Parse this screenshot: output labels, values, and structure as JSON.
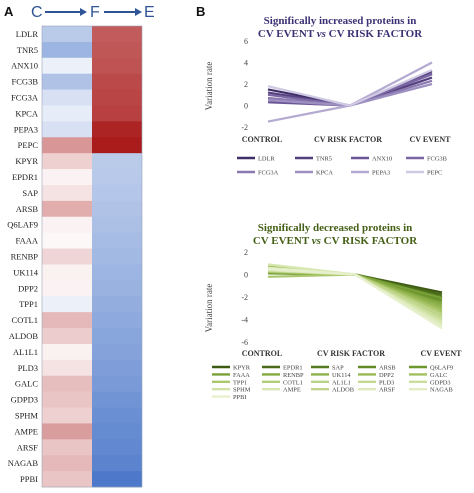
{
  "panel_labels": {
    "a": "A",
    "b": "B"
  },
  "heatmap_header": {
    "c": "C",
    "f": "F",
    "e": "E"
  },
  "chart_data": [
    {
      "type": "heatmap",
      "columns": [
        "C→F",
        "F→E"
      ],
      "rows": [
        "LDLR",
        "TNR5",
        "ANX10",
        "FCG3B",
        "FCG3A",
        "KPCA",
        "PEPA3",
        "PEPC",
        "KPYR",
        "EPDR1",
        "SAP",
        "ARSB",
        "Q6LAF9",
        "FAAA",
        "RENBP",
        "UK114",
        "DPP2",
        "TPP1",
        "COTL1",
        "ALDOB",
        "AL1L1",
        "PLD3",
        "GALC",
        "GDPD3",
        "SPHM",
        "AMPE",
        "ARSF",
        "NAGAB",
        "PPBI"
      ],
      "values": [
        [
          -0.35,
          0.7
        ],
        [
          -0.5,
          0.72
        ],
        [
          -0.1,
          0.74
        ],
        [
          -0.4,
          0.78
        ],
        [
          -0.2,
          0.8
        ],
        [
          -0.12,
          0.82
        ],
        [
          -0.2,
          0.94
        ],
        [
          0.45,
          0.98
        ],
        [
          0.2,
          -0.35
        ],
        [
          0.05,
          -0.36
        ],
        [
          0.12,
          -0.38
        ],
        [
          0.35,
          -0.4
        ],
        [
          0.05,
          -0.42
        ],
        [
          0.03,
          -0.45
        ],
        [
          0.18,
          -0.47
        ],
        [
          0.06,
          -0.5
        ],
        [
          0.05,
          -0.52
        ],
        [
          -0.1,
          -0.55
        ],
        [
          0.3,
          -0.58
        ],
        [
          0.22,
          -0.6
        ],
        [
          0.06,
          -0.62
        ],
        [
          0.12,
          -0.65
        ],
        [
          0.28,
          -0.68
        ],
        [
          0.25,
          -0.72
        ],
        [
          0.2,
          -0.75
        ],
        [
          0.42,
          -0.78
        ],
        [
          0.25,
          -0.8
        ],
        [
          0.3,
          -0.83
        ],
        [
          0.25,
          -0.9
        ]
      ]
    },
    {
      "type": "line",
      "title_parts": [
        "Significally increased proteins in",
        "CV EVENT ",
        "vs",
        " CV RISK FACTOR"
      ],
      "ylabel": "Variation rate",
      "categories": [
        "CONTROL",
        "CV RISK FACTOR",
        "CV EVENT"
      ],
      "ylim": [
        -2,
        6
      ],
      "yticks": [
        -2,
        0,
        2,
        4,
        6
      ],
      "legend_placement": "bottom",
      "series": [
        {
          "name": "LDLR",
          "color": "#3f2e67",
          "values": [
            1.5,
            0,
            3.2
          ]
        },
        {
          "name": "TNR5",
          "color": "#54407f",
          "values": [
            1.2,
            0,
            2.6
          ]
        },
        {
          "name": "ANX10",
          "color": "#6a5696",
          "values": [
            0.3,
            0,
            3.0
          ]
        },
        {
          "name": "FCG3B",
          "color": "#7a66a3",
          "values": [
            1.0,
            0,
            2.9
          ]
        },
        {
          "name": "FCG3A",
          "color": "#8a78b0",
          "values": [
            0.7,
            0,
            2.3
          ]
        },
        {
          "name": "KPCA",
          "color": "#9d8fc0",
          "values": [
            0.5,
            0,
            2.0
          ]
        },
        {
          "name": "PEPA3",
          "color": "#b3a9d1",
          "values": [
            -1.5,
            0,
            4.0
          ]
        },
        {
          "name": "PEPC",
          "color": "#cfc9e3",
          "values": [
            1.8,
            0,
            3.3
          ]
        }
      ]
    },
    {
      "type": "line",
      "title_parts": [
        "Significally decreased proteins in",
        "CV EVENT ",
        "vs",
        " CV RISK FACTOR"
      ],
      "ylabel": "Variation rate",
      "categories": [
        "CONTROL",
        "CV RISK FACTOR",
        "CV EVENT"
      ],
      "ylim": [
        -6,
        2
      ],
      "yticks": [
        -6,
        -4,
        -2,
        0,
        2
      ],
      "legend_placement": "bottom",
      "series": [
        {
          "name": "KPYR",
          "color": "#3c5a12",
          "values": [
            0.3,
            0,
            -1.6
          ]
        },
        {
          "name": "EPDR1",
          "color": "#4a6b1a",
          "values": [
            0.2,
            0,
            -1.8
          ]
        },
        {
          "name": "SAP",
          "color": "#557a20",
          "values": [
            0.4,
            0,
            -2.0
          ]
        },
        {
          "name": "ARSB",
          "color": "#628a29",
          "values": [
            0.6,
            0,
            -2.2
          ]
        },
        {
          "name": "Q6LAF9",
          "color": "#6d962f",
          "values": [
            0.1,
            0,
            -2.4
          ]
        },
        {
          "name": "FAAA",
          "color": "#78a036",
          "values": [
            0.2,
            0,
            -2.1
          ]
        },
        {
          "name": "RENBP",
          "color": "#82a83f",
          "values": [
            0.5,
            0,
            -2.6
          ]
        },
        {
          "name": "UK114",
          "color": "#8db14a",
          "values": [
            0.3,
            0,
            -2.8
          ]
        },
        {
          "name": "DPP2",
          "color": "#97b855",
          "values": [
            0.2,
            0,
            -3.0
          ]
        },
        {
          "name": "GALC",
          "color": "#a1c060",
          "values": [
            0.7,
            0,
            -3.2
          ]
        },
        {
          "name": "TPP1",
          "color": "#aac76c",
          "values": [
            -0.2,
            0,
            -3.3
          ]
        },
        {
          "name": "COTL1",
          "color": "#b2cd77",
          "values": [
            0.6,
            0,
            -3.5
          ]
        },
        {
          "name": "AL1L1",
          "color": "#bad383",
          "values": [
            0.4,
            0,
            -3.7
          ]
        },
        {
          "name": "PLD3",
          "color": "#c2d98f",
          "values": [
            0.3,
            0,
            -3.9
          ]
        },
        {
          "name": "GDPD3",
          "color": "#c9de9a",
          "values": [
            0.5,
            0,
            -4.0
          ]
        },
        {
          "name": "SPHM",
          "color": "#d0e2a5",
          "values": [
            0.4,
            0,
            -4.2
          ]
        },
        {
          "name": "AMPE",
          "color": "#d7e7b0",
          "values": [
            0.9,
            0,
            -4.3
          ]
        },
        {
          "name": "ALDOB",
          "color": "#c0d58b",
          "values": [
            0.5,
            0,
            -3.6
          ]
        },
        {
          "name": "ARSF",
          "color": "#dde9bb",
          "values": [
            0.4,
            0,
            -4.5
          ]
        },
        {
          "name": "NAGAB",
          "color": "#e2edc4",
          "values": [
            0.6,
            0,
            -4.6
          ]
        },
        {
          "name": "PPBI",
          "color": "#e7f0cd",
          "values": [
            0.5,
            0,
            -4.8
          ]
        }
      ]
    }
  ]
}
